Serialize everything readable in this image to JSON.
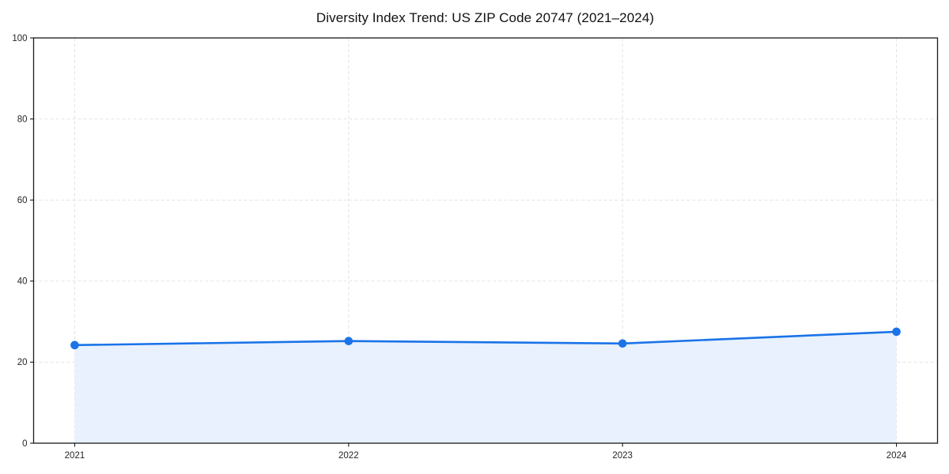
{
  "chart_data": {
    "type": "line",
    "title": "Diversity Index Trend: US ZIP Code 20747 (2021–2024)",
    "x": [
      2021,
      2022,
      2023,
      2024
    ],
    "x_tick_labels": [
      "2021",
      "2022",
      "2023",
      "2024"
    ],
    "series": [
      {
        "name": "Diversity Index",
        "values": [
          24.2,
          25.2,
          24.6,
          27.5
        ]
      }
    ],
    "xlabel": "",
    "ylabel": "",
    "ylim": [
      0,
      100
    ],
    "yticks": [
      0,
      20,
      40,
      60,
      80,
      100
    ],
    "grid": "dashed",
    "legend": "none",
    "area_fill": true,
    "marker": "circle",
    "colors": {
      "line": "#1a73e8",
      "marker": "#1a73e8",
      "area_fill": "#e8f1fd",
      "grid": "#e3e3e3",
      "spine": "#1a1a1a",
      "tick_label": "#262626",
      "title": "#111111",
      "background": "#ffffff"
    }
  }
}
